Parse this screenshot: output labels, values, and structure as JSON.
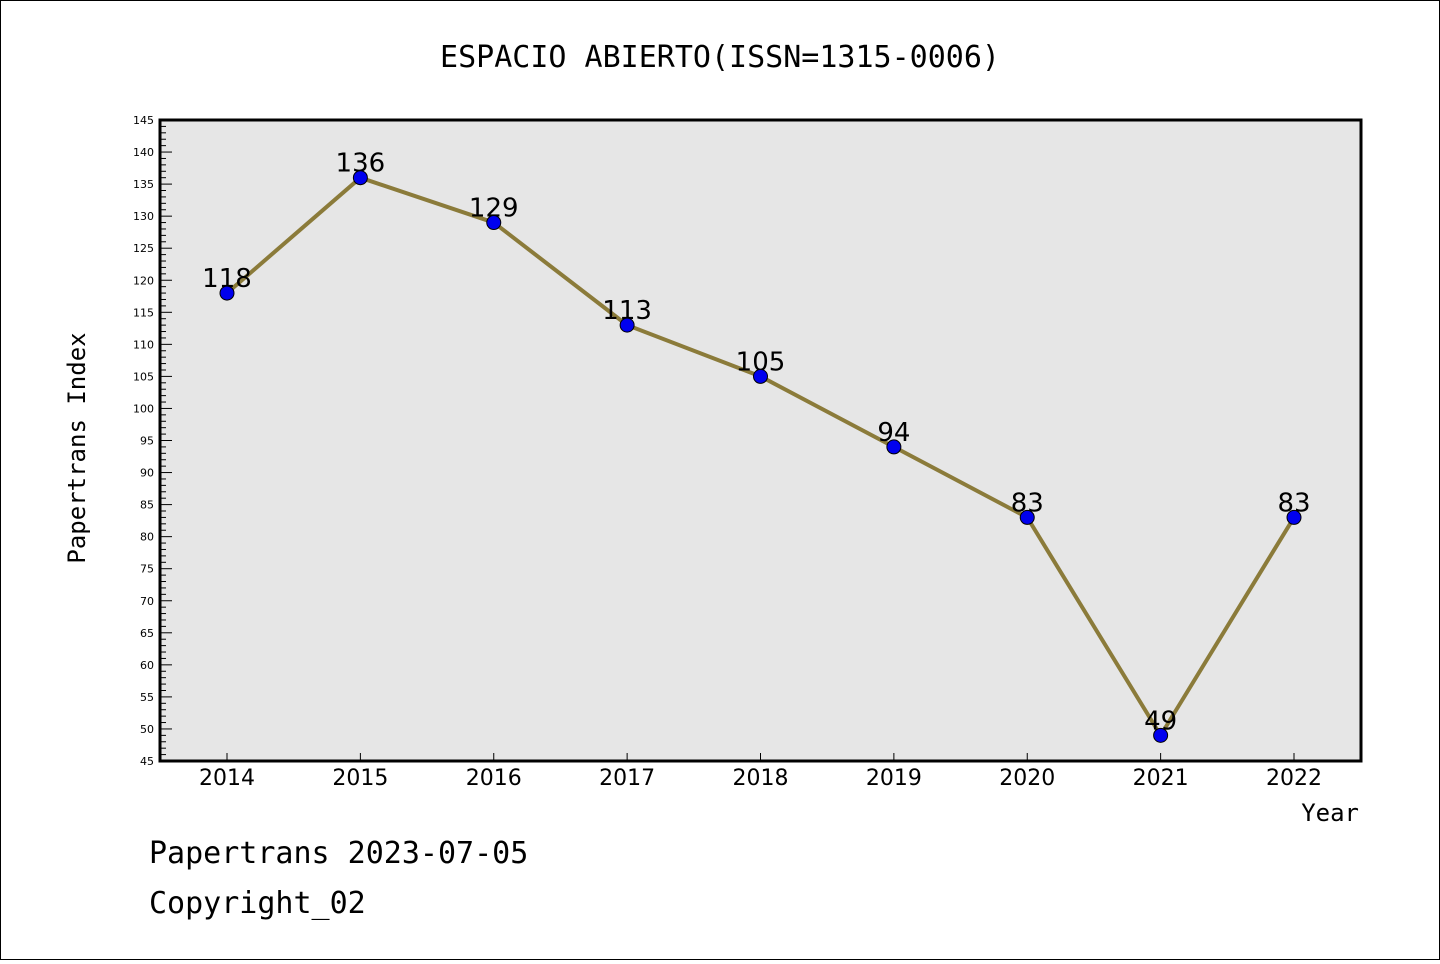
{
  "chart_data": {
    "type": "line",
    "title": "ESPACIO ABIERTO(ISSN=1315-0006)",
    "xlabel": "Year",
    "ylabel": "Papertrans Index",
    "categories": [
      "2014",
      "2015",
      "2016",
      "2017",
      "2018",
      "2019",
      "2020",
      "2021",
      "2022"
    ],
    "series": [
      {
        "values": [
          118,
          136,
          129,
          113,
          105,
          94,
          83,
          49,
          83
        ]
      }
    ],
    "ylim": [
      45,
      145
    ],
    "ytick_step": 5,
    "grid": false,
    "colors": {
      "line": "#8B7B3A",
      "marker": "#0000EE",
      "plot_bg": "#E6E6E6"
    }
  },
  "footer": {
    "line1": "Papertrans 2023-07-05",
    "line2": "Copyright_02"
  }
}
